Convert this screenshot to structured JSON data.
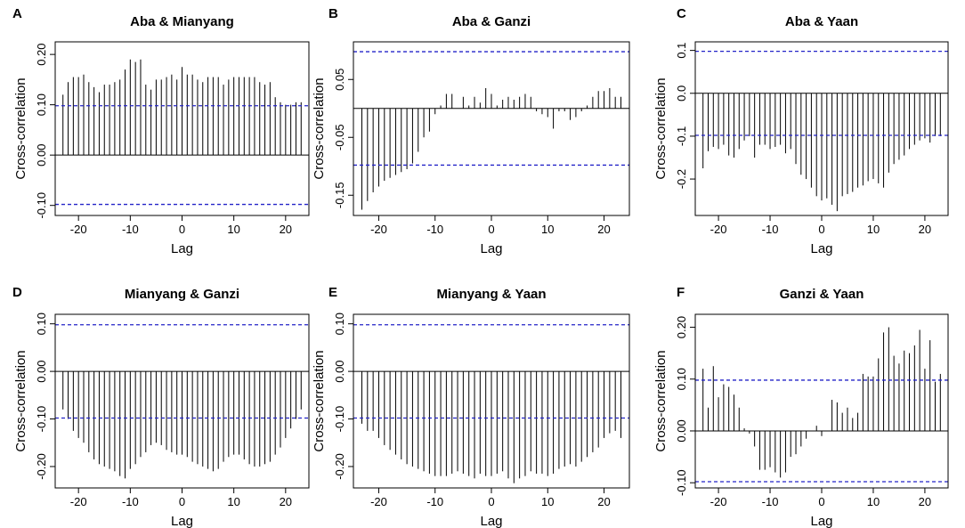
{
  "figure": {
    "colors": {
      "bar": "#000000",
      "ci_line": "#2323c8",
      "frame": "#000000",
      "zero_line": "#000000"
    }
  },
  "chart_data": [
    {
      "panel": "A",
      "title": "Aba & Mianyang",
      "type": "bar",
      "xlabel": "Lag",
      "ylabel": "Cross-correlation",
      "xlim": [
        -24.5,
        24.5
      ],
      "ylim": [
        -0.12,
        0.225
      ],
      "xticks": [
        -20,
        -10,
        0,
        10,
        20
      ],
      "xtick_labels": [
        "-20",
        "-10",
        "0",
        "10",
        "20"
      ],
      "yticks": [
        -0.1,
        0.0,
        0.1,
        0.2
      ],
      "ytick_labels": [
        "-0.10",
        "0.00",
        "0.10",
        "0.20"
      ],
      "ci": 0.098,
      "lags": [
        -23,
        -22,
        -21,
        -20,
        -19,
        -18,
        -17,
        -16,
        -15,
        -14,
        -13,
        -12,
        -11,
        -10,
        -9,
        -8,
        -7,
        -6,
        -5,
        -4,
        -3,
        -2,
        -1,
        0,
        1,
        2,
        3,
        4,
        5,
        6,
        7,
        8,
        9,
        10,
        11,
        12,
        13,
        14,
        15,
        16,
        17,
        18,
        19,
        20,
        21,
        22,
        23
      ],
      "values": [
        0.12,
        0.145,
        0.155,
        0.155,
        0.16,
        0.145,
        0.135,
        0.125,
        0.14,
        0.14,
        0.145,
        0.15,
        0.17,
        0.19,
        0.185,
        0.19,
        0.14,
        0.13,
        0.15,
        0.15,
        0.155,
        0.16,
        0.15,
        0.175,
        0.16,
        0.16,
        0.15,
        0.145,
        0.155,
        0.155,
        0.155,
        0.14,
        0.15,
        0.155,
        0.155,
        0.155,
        0.155,
        0.155,
        0.145,
        0.14,
        0.145,
        0.115,
        0.105,
        0.1,
        0.1,
        0.105,
        0.105
      ]
    },
    {
      "panel": "B",
      "title": "Aba & Ganzi",
      "type": "bar",
      "xlabel": "Lag",
      "ylabel": "Cross-correlation",
      "xlim": [
        -24.5,
        24.5
      ],
      "ylim": [
        -0.185,
        0.115
      ],
      "xticks": [
        -20,
        -10,
        0,
        10,
        20
      ],
      "xtick_labels": [
        "-20",
        "-10",
        "0",
        "10",
        "20"
      ],
      "yticks": [
        -0.15,
        -0.05,
        0.05
      ],
      "ytick_labels": [
        "-0.15",
        "-0.05",
        "0.05"
      ],
      "ci": 0.098,
      "lags": [
        -23,
        -22,
        -21,
        -20,
        -19,
        -18,
        -17,
        -16,
        -15,
        -14,
        -13,
        -12,
        -11,
        -10,
        -9,
        -8,
        -7,
        -6,
        -5,
        -4,
        -3,
        -2,
        -1,
        0,
        1,
        2,
        3,
        4,
        5,
        6,
        7,
        8,
        9,
        10,
        11,
        12,
        13,
        14,
        15,
        16,
        17,
        18,
        19,
        20,
        21,
        22,
        23
      ],
      "values": [
        -0.175,
        -0.16,
        -0.145,
        -0.135,
        -0.125,
        -0.12,
        -0.115,
        -0.11,
        -0.105,
        -0.095,
        -0.075,
        -0.05,
        -0.04,
        -0.01,
        0.005,
        0.025,
        0.025,
        0.0,
        0.02,
        0.005,
        0.02,
        0.01,
        0.035,
        0.025,
        0.005,
        0.015,
        0.02,
        0.015,
        0.02,
        0.025,
        0.02,
        -0.005,
        -0.01,
        -0.015,
        -0.035,
        -0.005,
        -0.005,
        -0.02,
        -0.015,
        -0.005,
        0.005,
        0.02,
        0.03,
        0.03,
        0.035,
        0.02,
        0.02
      ]
    },
    {
      "panel": "C",
      "title": "Aba & Yaan",
      "type": "bar",
      "xlabel": "Lag",
      "ylabel": "Cross-correlation",
      "xlim": [
        -24.5,
        24.5
      ],
      "ylim": [
        -0.285,
        0.12
      ],
      "xticks": [
        -20,
        -10,
        0,
        10,
        20
      ],
      "xtick_labels": [
        "-20",
        "-10",
        "0",
        "10",
        "20"
      ],
      "yticks": [
        -0.2,
        -0.1,
        0.0,
        0.1
      ],
      "ytick_labels": [
        "-0.2",
        "-0.1",
        "0.0",
        "0.1"
      ],
      "ci": 0.098,
      "lags": [
        -23,
        -22,
        -21,
        -20,
        -19,
        -18,
        -17,
        -16,
        -15,
        -14,
        -13,
        -12,
        -11,
        -10,
        -9,
        -8,
        -7,
        -6,
        -5,
        -4,
        -3,
        -2,
        -1,
        0,
        1,
        2,
        3,
        4,
        5,
        6,
        7,
        8,
        9,
        10,
        11,
        12,
        13,
        14,
        15,
        16,
        17,
        18,
        19,
        20,
        21,
        22,
        23
      ],
      "values": [
        -0.175,
        -0.135,
        -0.125,
        -0.13,
        -0.12,
        -0.145,
        -0.15,
        -0.13,
        -0.11,
        -0.1,
        -0.15,
        -0.12,
        -0.12,
        -0.13,
        -0.125,
        -0.12,
        -0.14,
        -0.13,
        -0.165,
        -0.19,
        -0.2,
        -0.22,
        -0.24,
        -0.25,
        -0.245,
        -0.26,
        -0.275,
        -0.24,
        -0.235,
        -0.23,
        -0.22,
        -0.215,
        -0.205,
        -0.2,
        -0.21,
        -0.22,
        -0.185,
        -0.165,
        -0.155,
        -0.145,
        -0.13,
        -0.12,
        -0.11,
        -0.105,
        -0.115,
        -0.1,
        -0.1
      ]
    },
    {
      "panel": "D",
      "title": "Mianyang & Ganzi",
      "type": "bar",
      "xlabel": "Lag",
      "ylabel": "Cross-correlation",
      "xlim": [
        -24.5,
        24.5
      ],
      "ylim": [
        -0.245,
        0.12
      ],
      "xticks": [
        -20,
        -10,
        0,
        10,
        20
      ],
      "xtick_labels": [
        "-20",
        "-10",
        "0",
        "10",
        "20"
      ],
      "yticks": [
        -0.2,
        -0.1,
        0.0,
        0.1
      ],
      "ytick_labels": [
        "-0.20",
        "-0.10",
        "0.00",
        "0.10"
      ],
      "ci": 0.098,
      "lags": [
        -23,
        -22,
        -21,
        -20,
        -19,
        -18,
        -17,
        -16,
        -15,
        -14,
        -13,
        -12,
        -11,
        -10,
        -9,
        -8,
        -7,
        -6,
        -5,
        -4,
        -3,
        -2,
        -1,
        0,
        1,
        2,
        3,
        4,
        5,
        6,
        7,
        8,
        9,
        10,
        11,
        12,
        13,
        14,
        15,
        16,
        17,
        18,
        19,
        20,
        21,
        22,
        23
      ],
      "values": [
        -0.08,
        -0.1,
        -0.125,
        -0.14,
        -0.15,
        -0.17,
        -0.185,
        -0.195,
        -0.2,
        -0.205,
        -0.21,
        -0.22,
        -0.225,
        -0.205,
        -0.195,
        -0.18,
        -0.17,
        -0.155,
        -0.15,
        -0.155,
        -0.165,
        -0.17,
        -0.175,
        -0.175,
        -0.18,
        -0.19,
        -0.195,
        -0.2,
        -0.205,
        -0.21,
        -0.205,
        -0.19,
        -0.18,
        -0.175,
        -0.175,
        -0.185,
        -0.195,
        -0.2,
        -0.2,
        -0.195,
        -0.19,
        -0.175,
        -0.16,
        -0.14,
        -0.12,
        -0.1,
        -0.08
      ]
    },
    {
      "panel": "E",
      "title": "Mianyang & Yaan",
      "type": "bar",
      "xlabel": "Lag",
      "ylabel": "Cross-correlation",
      "xlim": [
        -24.5,
        24.5
      ],
      "ylim": [
        -0.245,
        0.12
      ],
      "xticks": [
        -20,
        -10,
        0,
        10,
        20
      ],
      "xtick_labels": [
        "-20",
        "-10",
        "0",
        "10",
        "20"
      ],
      "yticks": [
        -0.2,
        -0.1,
        0.0,
        0.1
      ],
      "ytick_labels": [
        "-0.20",
        "-0.10",
        "0.00",
        "0.10"
      ],
      "ci": 0.098,
      "lags": [
        -23,
        -22,
        -21,
        -20,
        -19,
        -18,
        -17,
        -16,
        -15,
        -14,
        -13,
        -12,
        -11,
        -10,
        -9,
        -8,
        -7,
        -6,
        -5,
        -4,
        -3,
        -2,
        -1,
        0,
        1,
        2,
        3,
        4,
        5,
        6,
        7,
        8,
        9,
        10,
        11,
        12,
        13,
        14,
        15,
        16,
        17,
        18,
        19,
        20,
        21,
        22,
        23
      ],
      "values": [
        -0.11,
        -0.125,
        -0.125,
        -0.14,
        -0.155,
        -0.165,
        -0.175,
        -0.185,
        -0.195,
        -0.2,
        -0.205,
        -0.21,
        -0.215,
        -0.22,
        -0.22,
        -0.22,
        -0.215,
        -0.21,
        -0.215,
        -0.22,
        -0.225,
        -0.215,
        -0.22,
        -0.22,
        -0.215,
        -0.21,
        -0.225,
        -0.235,
        -0.225,
        -0.22,
        -0.21,
        -0.215,
        -0.215,
        -0.22,
        -0.215,
        -0.205,
        -0.2,
        -0.195,
        -0.2,
        -0.19,
        -0.18,
        -0.17,
        -0.16,
        -0.14,
        -0.13,
        -0.125,
        -0.14
      ]
    },
    {
      "panel": "F",
      "title": "Ganzi & Yaan",
      "type": "bar",
      "xlabel": "Lag",
      "ylabel": "Cross-correlation",
      "xlim": [
        -24.5,
        24.5
      ],
      "ylim": [
        -0.11,
        0.225
      ],
      "xticks": [
        -20,
        -10,
        0,
        10,
        20
      ],
      "xtick_labels": [
        "-20",
        "-10",
        "0",
        "10",
        "20"
      ],
      "yticks": [
        -0.1,
        0.0,
        0.1,
        0.2
      ],
      "ytick_labels": [
        "-0.10",
        "0.00",
        "0.10",
        "0.20"
      ],
      "ci": 0.098,
      "lags": [
        -23,
        -22,
        -21,
        -20,
        -19,
        -18,
        -17,
        -16,
        -15,
        -14,
        -13,
        -12,
        -11,
        -10,
        -9,
        -8,
        -7,
        -6,
        -5,
        -4,
        -3,
        -2,
        -1,
        0,
        1,
        2,
        3,
        4,
        5,
        6,
        7,
        8,
        9,
        10,
        11,
        12,
        13,
        14,
        15,
        16,
        17,
        18,
        19,
        20,
        21,
        22,
        23
      ],
      "values": [
        0.12,
        0.045,
        0.125,
        0.065,
        0.09,
        0.085,
        0.07,
        0.045,
        0.005,
        -0.005,
        -0.03,
        -0.075,
        -0.075,
        -0.07,
        -0.08,
        -0.09,
        -0.08,
        -0.05,
        -0.045,
        -0.03,
        -0.015,
        0.0,
        0.01,
        -0.01,
        0.0,
        0.06,
        0.055,
        0.035,
        0.045,
        0.025,
        0.035,
        0.11,
        0.105,
        0.105,
        0.14,
        0.19,
        0.2,
        0.145,
        0.13,
        0.155,
        0.15,
        0.165,
        0.195,
        0.12,
        0.175,
        0.095,
        0.11
      ]
    }
  ]
}
